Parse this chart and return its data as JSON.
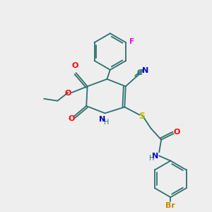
{
  "bg_color": "#eeeeee",
  "bond_color": "#2d7070",
  "colors": {
    "O": "#ff0000",
    "N": "#0000cc",
    "S": "#b8b800",
    "F": "#ee00ee",
    "Br": "#cc8800",
    "C": "#2d7070"
  },
  "figsize": [
    3.0,
    3.0
  ],
  "dpi": 100,
  "lw": 1.3
}
